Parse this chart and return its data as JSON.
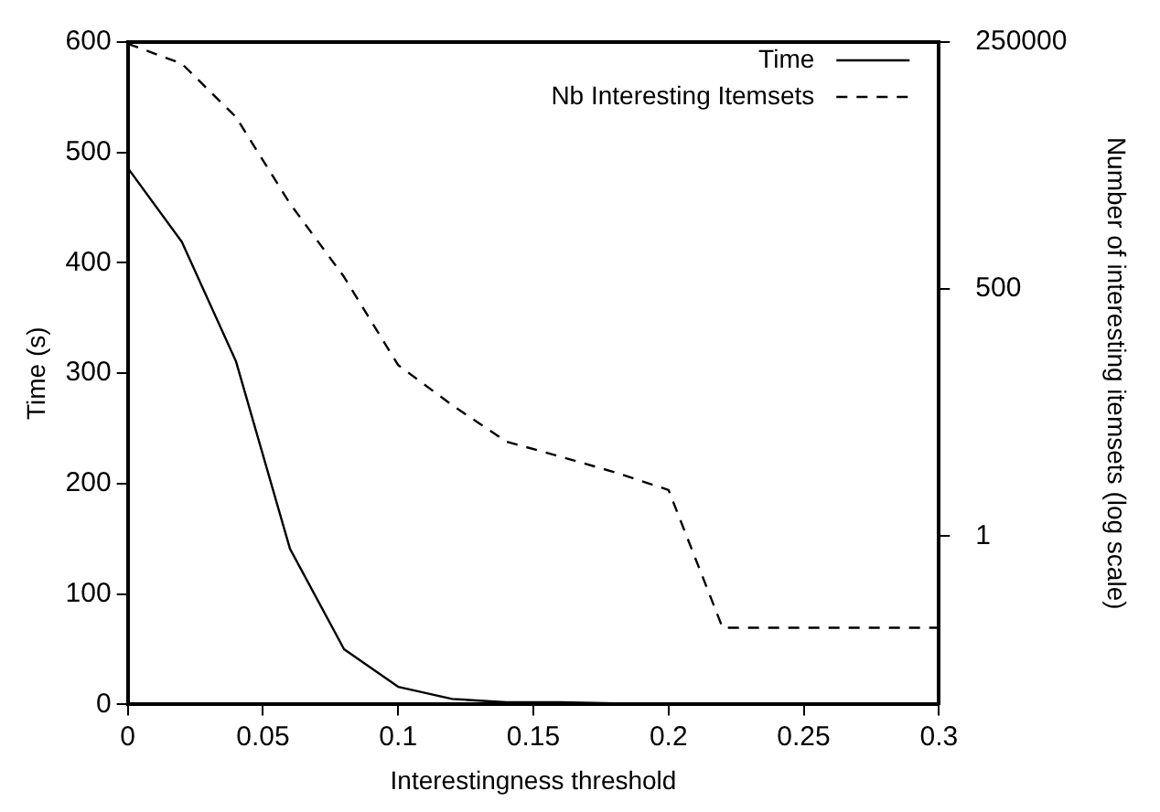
{
  "chart_data": {
    "type": "line",
    "xlabel": "Interestingness threshold",
    "ylabel": "Time (s)",
    "y2label": "Number of interesting itemsets (log scale)",
    "x": [
      0,
      0.02,
      0.04,
      0.06,
      0.08,
      0.1,
      0.12,
      0.14,
      0.16,
      0.18,
      0.2,
      0.22,
      0.24,
      0.26,
      0.28,
      0.3
    ],
    "series": [
      {
        "name": "Time",
        "color": "#000000",
        "line_style": "solid",
        "values": [
          486,
          419,
          311,
          141,
          50,
          16,
          5,
          2,
          2,
          1,
          1,
          0,
          0,
          0,
          0,
          0
        ]
      },
      {
        "name": "Nb Interesting Itemsets",
        "color": "#000000",
        "line_style": "dashed",
        "axis": "y2",
        "values": [
          240000,
          145000,
          38000,
          4300,
          680,
          74,
          27,
          10.8,
          7.4,
          5,
          3.2,
          0.1,
          0.1,
          0.1,
          0.1,
          0.1
        ]
      }
    ],
    "xlim": [
      0,
      0.3
    ],
    "xticks": [
      0,
      0.05,
      0.1,
      0.15,
      0.2,
      0.25,
      0.3
    ],
    "ylim": [
      0,
      600
    ],
    "yticks": [
      0,
      100,
      200,
      300,
      400,
      500,
      600
    ],
    "y2lim": [
      0.0145,
      250000
    ],
    "y2ticks": [
      1,
      500,
      250000
    ],
    "log": "y2",
    "grid": false,
    "legend": "top right",
    "marker": "none"
  }
}
